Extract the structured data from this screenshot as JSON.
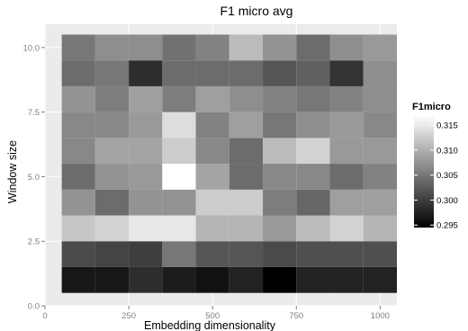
{
  "chart_data": {
    "type": "heatmap",
    "title": "F1 micro avg",
    "xlabel": "Embedding dimensionality",
    "ylabel": "Window size",
    "x_ticks": [
      0,
      250,
      500,
      750,
      1000
    ],
    "y_ticks": [
      "0.0",
      "2.5",
      "5.0",
      "7.5",
      "10.0"
    ],
    "xlim": [
      0,
      1050
    ],
    "ylim": [
      0,
      10.9
    ],
    "x": [
      100,
      200,
      300,
      400,
      500,
      600,
      700,
      800,
      900,
      1000
    ],
    "y": [
      1,
      2,
      3,
      4,
      5,
      6,
      7,
      8,
      9,
      10
    ],
    "values": [
      [
        0.2965,
        0.2965,
        0.2985,
        0.297,
        0.296,
        0.2975,
        0.2945,
        0.2975,
        0.2975,
        0.2975
      ],
      [
        0.301,
        0.3005,
        0.3,
        0.305,
        0.302,
        0.302,
        0.301,
        0.3015,
        0.3015,
        0.3015
      ],
      [
        0.312,
        0.313,
        0.315,
        0.315,
        0.3105,
        0.3105,
        0.308,
        0.311,
        0.313,
        0.3105
      ],
      [
        0.3075,
        0.304,
        0.3075,
        0.3075,
        0.3125,
        0.3125,
        0.3055,
        0.3035,
        0.3085,
        0.3085
      ],
      [
        0.304,
        0.3075,
        0.308,
        0.317,
        0.309,
        0.304,
        0.3065,
        0.3065,
        0.304,
        0.306
      ],
      [
        0.3065,
        0.309,
        0.309,
        0.3125,
        0.3065,
        0.304,
        0.311,
        0.313,
        0.308,
        0.308
      ],
      [
        0.3065,
        0.3065,
        0.308,
        0.314,
        0.306,
        0.3085,
        0.305,
        0.307,
        0.308,
        0.3065
      ],
      [
        0.3075,
        0.3055,
        0.3085,
        0.3055,
        0.3085,
        0.307,
        0.306,
        0.305,
        0.306,
        0.307
      ],
      [
        0.304,
        0.305,
        0.2985,
        0.304,
        0.304,
        0.304,
        0.302,
        0.303,
        0.299,
        0.307
      ],
      [
        0.305,
        0.307,
        0.307,
        0.3045,
        0.306,
        0.311,
        0.3075,
        0.304,
        0.307,
        0.308
      ]
    ],
    "legend": {
      "title": "F1micro",
      "ticks": [
        "0.315",
        "0.310",
        "0.305",
        "0.300",
        "0.295"
      ],
      "min": 0.2945,
      "max": 0.317,
      "placement": "right"
    },
    "colors": {
      "panel_bg": "#ebebeb",
      "grid": "#ffffff",
      "low": "#000000",
      "high": "#ffffff",
      "axis_text": "#7f7f7f",
      "title_text": "#000000"
    }
  }
}
